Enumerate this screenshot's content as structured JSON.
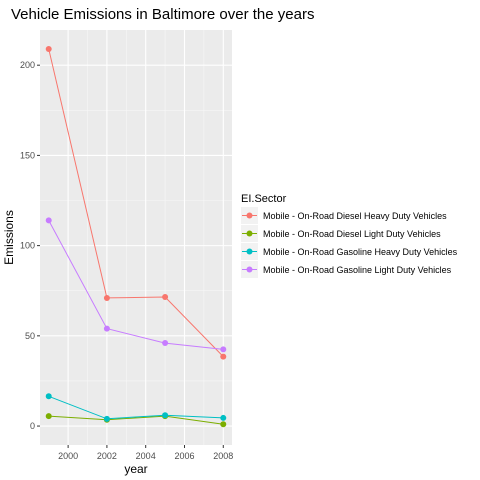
{
  "chart_data": {
    "type": "line",
    "title": "Vehicle Emissions in Baltimore over the years",
    "xlabel": "year",
    "ylabel": "Emissions",
    "x": [
      1999,
      2002,
      2005,
      2008
    ],
    "xticks": [
      "2000",
      "2002",
      "2004",
      "2006",
      "2008"
    ],
    "yticks": [
      "0",
      "50",
      "100",
      "150",
      "200"
    ],
    "xlim": [
      1998.55,
      2008.45
    ],
    "ylim": [
      -10.5,
      219.5
    ],
    "grid": true,
    "legend_title": "EI.Sector",
    "legend_position": "right",
    "series": [
      {
        "name": "Mobile - On-Road Diesel Heavy Duty Vehicles",
        "color": "#F8766D",
        "values": [
          209.0,
          71.0,
          71.5,
          38.5
        ]
      },
      {
        "name": "Mobile - On-Road Diesel Light Duty Vehicles",
        "color": "#7CAE00",
        "values": [
          5.5,
          3.5,
          5.5,
          1.0
        ]
      },
      {
        "name": "Mobile - On-Road Gasoline Heavy Duty Vehicles",
        "color": "#00BFC4",
        "values": [
          16.5,
          4.0,
          6.0,
          4.5
        ]
      },
      {
        "name": "Mobile - On-Road Gasoline Light Duty Vehicles",
        "color": "#C77CFF",
        "values": [
          114.0,
          54.0,
          46.0,
          42.5
        ]
      }
    ]
  }
}
